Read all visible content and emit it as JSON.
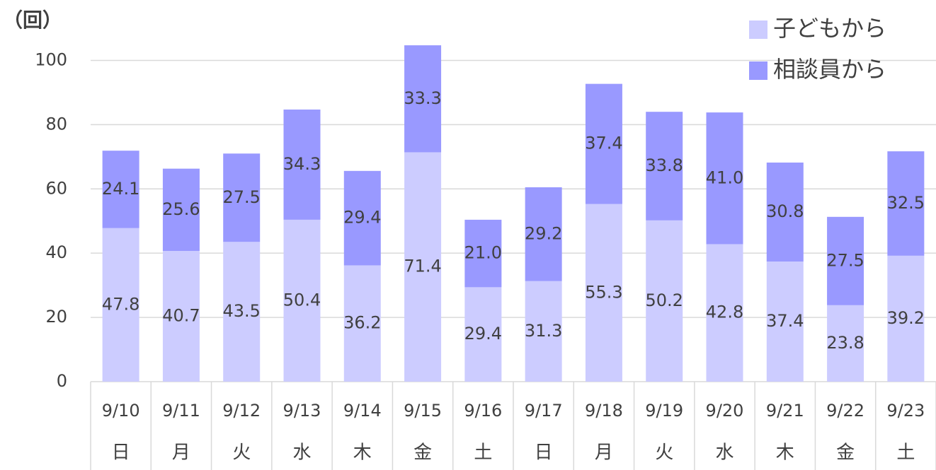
{
  "chart_data": {
    "type": "stacked_bar",
    "y_axis_label": "（回）",
    "categories": [
      "9/10",
      "9/11",
      "9/12",
      "9/13",
      "9/14",
      "9/15",
      "9/16",
      "9/17",
      "9/18",
      "9/19",
      "9/20",
      "9/21",
      "9/22",
      "9/23"
    ],
    "category_days": [
      "日",
      "月",
      "火",
      "水",
      "木",
      "金",
      "土",
      "日",
      "月",
      "火",
      "水",
      "木",
      "金",
      "土"
    ],
    "series": [
      {
        "name": "子どもから",
        "color": "#ccccff",
        "values": [
          47.8,
          40.7,
          43.5,
          50.4,
          36.2,
          71.4,
          29.4,
          31.3,
          55.3,
          50.2,
          42.8,
          37.4,
          23.8,
          39.2
        ],
        "value_labels": [
          "47.8",
          "40.7",
          "43.5",
          "50.4",
          "36.2",
          "71.4",
          "29.4",
          "31.3",
          "55.3",
          "50.2",
          "42.8",
          "37.4",
          "23.8",
          "39.2"
        ]
      },
      {
        "name": "相談員から",
        "color": "#9999ff",
        "values": [
          24.1,
          25.6,
          27.5,
          34.3,
          29.4,
          33.3,
          21.0,
          29.2,
          37.4,
          33.8,
          41.0,
          30.8,
          27.5,
          32.5
        ],
        "value_labels": [
          "24.1",
          "25.6",
          "27.5",
          "34.3",
          "29.4",
          "33.3",
          "21.0",
          "29.2",
          "37.4",
          "33.8",
          "41.0",
          "30.8",
          "27.5",
          "32.5"
        ]
      }
    ],
    "ylim": [
      0,
      110
    ],
    "yticks": [
      0,
      20,
      40,
      60,
      80,
      100
    ],
    "grid": true,
    "legend": "top-right"
  }
}
